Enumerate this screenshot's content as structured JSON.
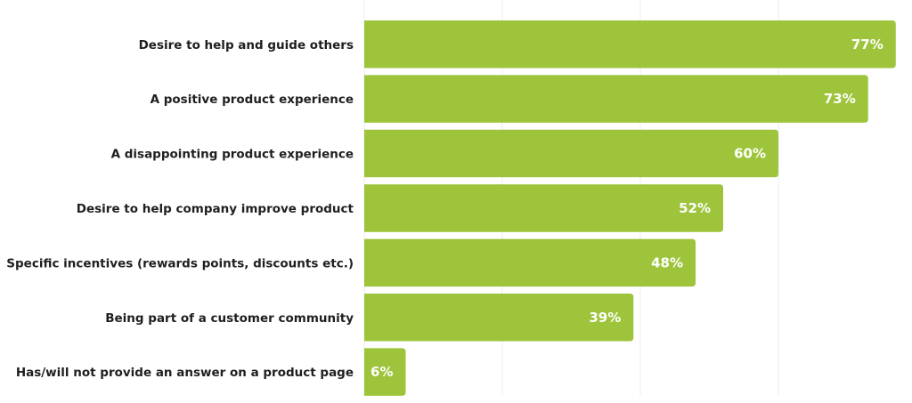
{
  "chart_data": {
    "type": "bar",
    "orientation": "horizontal",
    "title": "",
    "xlabel": "",
    "ylabel": "",
    "categories": [
      "Desire to help and guide others",
      "A positive product experience",
      "A disappointing product experience",
      "Desire to help company improve product",
      "Specific incentives (rewards points, discounts etc.)",
      "Being part of a customer community",
      "Has/will not provide an answer on a product page"
    ],
    "values": [
      77,
      73,
      60,
      52,
      48,
      39,
      6
    ],
    "value_labels": [
      "77%",
      "73%",
      "60%",
      "52%",
      "48%",
      "39%",
      "6%"
    ],
    "xlim": [
      0,
      80
    ],
    "gridlines": [
      20,
      40,
      60
    ],
    "grid": true,
    "bar_color": "#9dc43a"
  }
}
